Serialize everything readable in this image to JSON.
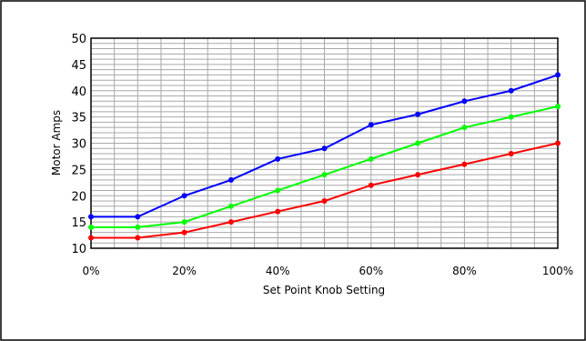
{
  "chart_data": {
    "type": "line",
    "title": "",
    "xlabel": "Set Point Knob Setting",
    "ylabel": "Motor Amps",
    "categories": [
      "0%",
      "10%",
      "20%",
      "30%",
      "40%",
      "50%",
      "60%",
      "70%",
      "80%",
      "90%",
      "100%"
    ],
    "x_tick_labels": [
      "0%",
      "20%",
      "40%",
      "60%",
      "80%",
      "100%"
    ],
    "x": [
      0,
      10,
      20,
      30,
      40,
      50,
      60,
      70,
      80,
      90,
      100
    ],
    "xlim": [
      0,
      100
    ],
    "ylim": [
      10,
      50
    ],
    "y_ticks": [
      10,
      15,
      20,
      25,
      30,
      35,
      40,
      45,
      50
    ],
    "grid": true,
    "legend": "none",
    "series": [
      {
        "color": "#0000ff",
        "values": [
          16,
          16,
          20,
          23,
          27,
          29,
          33.5,
          35.5,
          38,
          40,
          43
        ]
      },
      {
        "color": "#00ff00",
        "values": [
          14,
          14,
          15,
          18,
          21,
          24,
          27,
          30,
          33,
          35,
          37
        ]
      },
      {
        "color": "#ff0000",
        "values": [
          12,
          12,
          13,
          15,
          17,
          19,
          22,
          24,
          26,
          28,
          30
        ]
      }
    ]
  }
}
